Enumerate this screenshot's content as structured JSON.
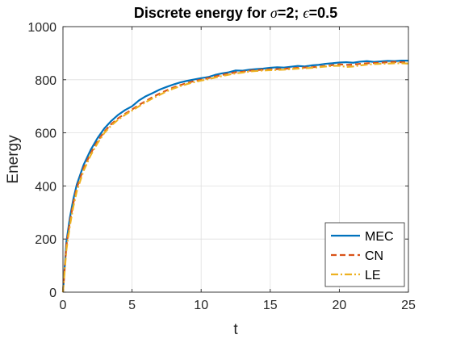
{
  "chart_data": {
    "type": "line",
    "title": {
      "prefix": "Discrete energy for ",
      "sym1": "σ",
      "mid": "=2; ",
      "sym2": "ϵ",
      "suffix": "=0.5"
    },
    "xlabel": "t",
    "ylabel": "Energy",
    "xlim": [
      0,
      25
    ],
    "ylim": [
      0,
      1000
    ],
    "xticks": [
      0,
      5,
      10,
      15,
      20,
      25
    ],
    "yticks": [
      0,
      200,
      400,
      600,
      800,
      1000
    ],
    "grid": true,
    "legend_position": "bottom-right",
    "series": [
      {
        "name": "MEC",
        "color": "#0072BD",
        "style": "solid",
        "x": [
          0,
          0.25,
          0.5,
          0.75,
          1,
          1.5,
          2,
          2.5,
          3,
          3.5,
          4,
          4.5,
          5,
          5.5,
          6,
          6.5,
          7,
          7.5,
          8,
          8.5,
          9,
          9.5,
          10,
          10.5,
          11,
          11.5,
          12,
          12.5,
          13,
          13.5,
          14,
          14.5,
          15,
          15.5,
          16,
          16.5,
          17,
          17.5,
          18,
          18.5,
          19,
          19.5,
          20,
          20.5,
          21,
          21.5,
          22,
          22.5,
          23,
          23.5,
          24,
          24.5,
          25
        ],
        "values": [
          0,
          190,
          280,
          350,
          405,
          480,
          535,
          580,
          617,
          645,
          668,
          686,
          700,
          722,
          738,
          750,
          763,
          773,
          782,
          790,
          796,
          801,
          806,
          810,
          818,
          824,
          828,
          835,
          834,
          838,
          840,
          842,
          845,
          847,
          846,
          849,
          852,
          850,
          854,
          856,
          860,
          862,
          865,
          866,
          864,
          868,
          870,
          867,
          869,
          871,
          870,
          872,
          872
        ]
      },
      {
        "name": "CN",
        "color": "#D95319",
        "style": "dashed",
        "x": [
          0,
          0.25,
          0.5,
          0.75,
          1,
          1.5,
          2,
          2.5,
          3,
          3.5,
          4,
          4.5,
          5,
          5.5,
          6,
          6.5,
          7,
          7.5,
          8,
          8.5,
          9,
          9.5,
          10,
          10.5,
          11,
          11.5,
          12,
          12.5,
          13,
          13.5,
          14,
          14.5,
          15,
          15.5,
          16,
          16.5,
          17,
          17.5,
          18,
          18.5,
          19,
          19.5,
          20,
          20.5,
          21,
          21.5,
          22,
          22.5,
          23,
          23.5,
          24,
          24.5,
          25
        ],
        "values": [
          0,
          175,
          265,
          335,
          392,
          468,
          522,
          568,
          605,
          633,
          655,
          672,
          688,
          705,
          720,
          735,
          748,
          760,
          771,
          780,
          788,
          795,
          800,
          806,
          812,
          818,
          823,
          828,
          830,
          834,
          836,
          838,
          839,
          840,
          841,
          843,
          845,
          846,
          847,
          849,
          852,
          855,
          858,
          856,
          857,
          860,
          862,
          863,
          864,
          866,
          867,
          866,
          865
        ]
      },
      {
        "name": "LE",
        "color": "#EDB120",
        "style": "dashdot",
        "x": [
          0,
          0.25,
          0.5,
          0.75,
          1,
          1.5,
          2,
          2.5,
          3,
          3.5,
          4,
          4.5,
          5,
          5.5,
          6,
          6.5,
          7,
          7.5,
          8,
          8.5,
          9,
          9.5,
          10,
          10.5,
          11,
          11.5,
          12,
          12.5,
          13,
          13.5,
          14,
          14.5,
          15,
          15.5,
          16,
          16.5,
          17,
          17.5,
          18,
          18.5,
          19,
          19.5,
          20,
          20.5,
          21,
          21.5,
          22,
          22.5,
          23,
          23.5,
          24,
          24.5,
          25
        ],
        "values": [
          0,
          160,
          250,
          322,
          380,
          458,
          515,
          561,
          600,
          628,
          650,
          668,
          684,
          700,
          716,
          730,
          743,
          756,
          767,
          776,
          784,
          791,
          797,
          802,
          808,
          814,
          819,
          824,
          827,
          831,
          833,
          835,
          836,
          837,
          838,
          840,
          842,
          843,
          845,
          847,
          850,
          852,
          853,
          848,
          850,
          854,
          857,
          859,
          860,
          861,
          862,
          862,
          861
        ]
      }
    ]
  }
}
